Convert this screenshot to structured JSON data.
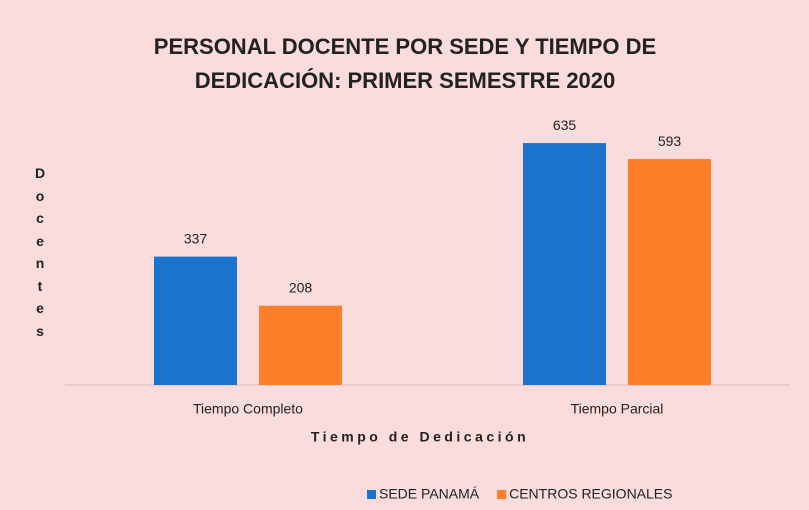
{
  "chart_data": {
    "type": "bar",
    "title": "PERSONAL DOCENTE POR SEDE Y TIEMPO DE DEDICACIÓN: PRIMER SEMESTRE 2020",
    "x_label": "Tiempo de Dedicación",
    "y_label": "Docentes",
    "categories": [
      "Tiempo Completo",
      "Tiempo Parcial"
    ],
    "series": [
      {
        "name": "SEDE PANAMÁ",
        "color": "#1a73cc",
        "values": [
          337,
          635
        ]
      },
      {
        "name": "CENTROS REGIONALES",
        "color": "#fd7f2a",
        "values": [
          208,
          593
        ]
      }
    ]
  }
}
